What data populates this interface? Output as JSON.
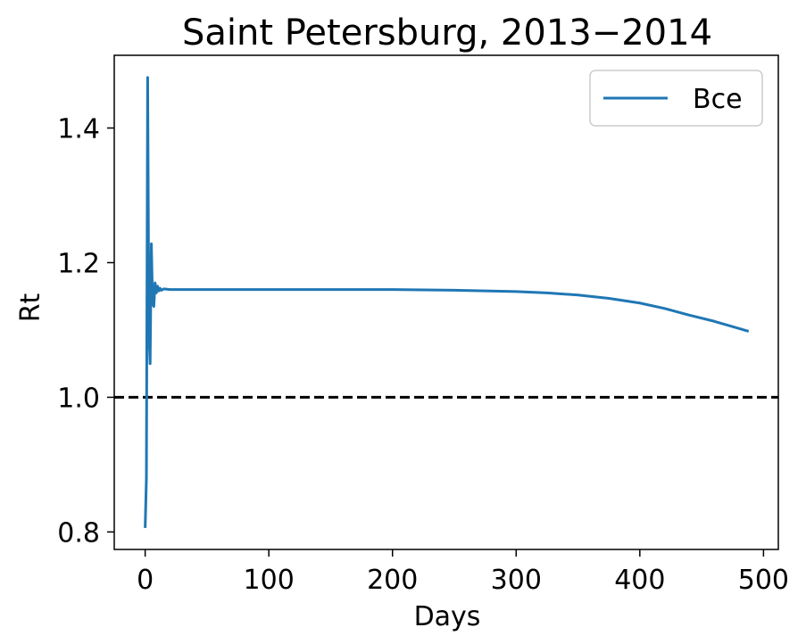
{
  "chart_data": {
    "type": "line",
    "title": "Saint Petersburg, 2013−2014",
    "xlabel": "Days",
    "ylabel": "Rt",
    "xlim": [
      -25,
      512
    ],
    "ylim": [
      0.774,
      1.508
    ],
    "xticks": [
      0,
      100,
      200,
      300,
      400,
      500
    ],
    "xtick_labels": [
      "0",
      "100",
      "200",
      "300",
      "400",
      "500"
    ],
    "yticks": [
      0.8,
      1.0,
      1.2,
      1.4
    ],
    "ytick_labels": [
      "0.8",
      "1.0",
      "1.2",
      "1.4"
    ],
    "grid": false,
    "legend_position": "top-right",
    "reference_line": {
      "y": 1.0,
      "style": "dashed",
      "color": "#000000"
    },
    "series": [
      {
        "name": "Все",
        "color": "#1f77b4",
        "x": [
          0,
          1,
          2,
          3,
          4,
          5,
          6,
          7,
          8,
          9,
          10,
          11,
          12,
          13,
          15,
          20,
          30,
          50,
          100,
          150,
          200,
          250,
          300,
          325,
          350,
          375,
          400,
          420,
          440,
          460,
          475,
          488
        ],
        "y": [
          0.806,
          0.88,
          1.475,
          1.1,
          1.05,
          1.228,
          1.14,
          1.135,
          1.17,
          1.155,
          1.165,
          1.158,
          1.162,
          1.159,
          1.161,
          1.16,
          1.16,
          1.16,
          1.16,
          1.16,
          1.16,
          1.159,
          1.157,
          1.155,
          1.152,
          1.147,
          1.14,
          1.132,
          1.122,
          1.113,
          1.105,
          1.098
        ]
      }
    ]
  }
}
